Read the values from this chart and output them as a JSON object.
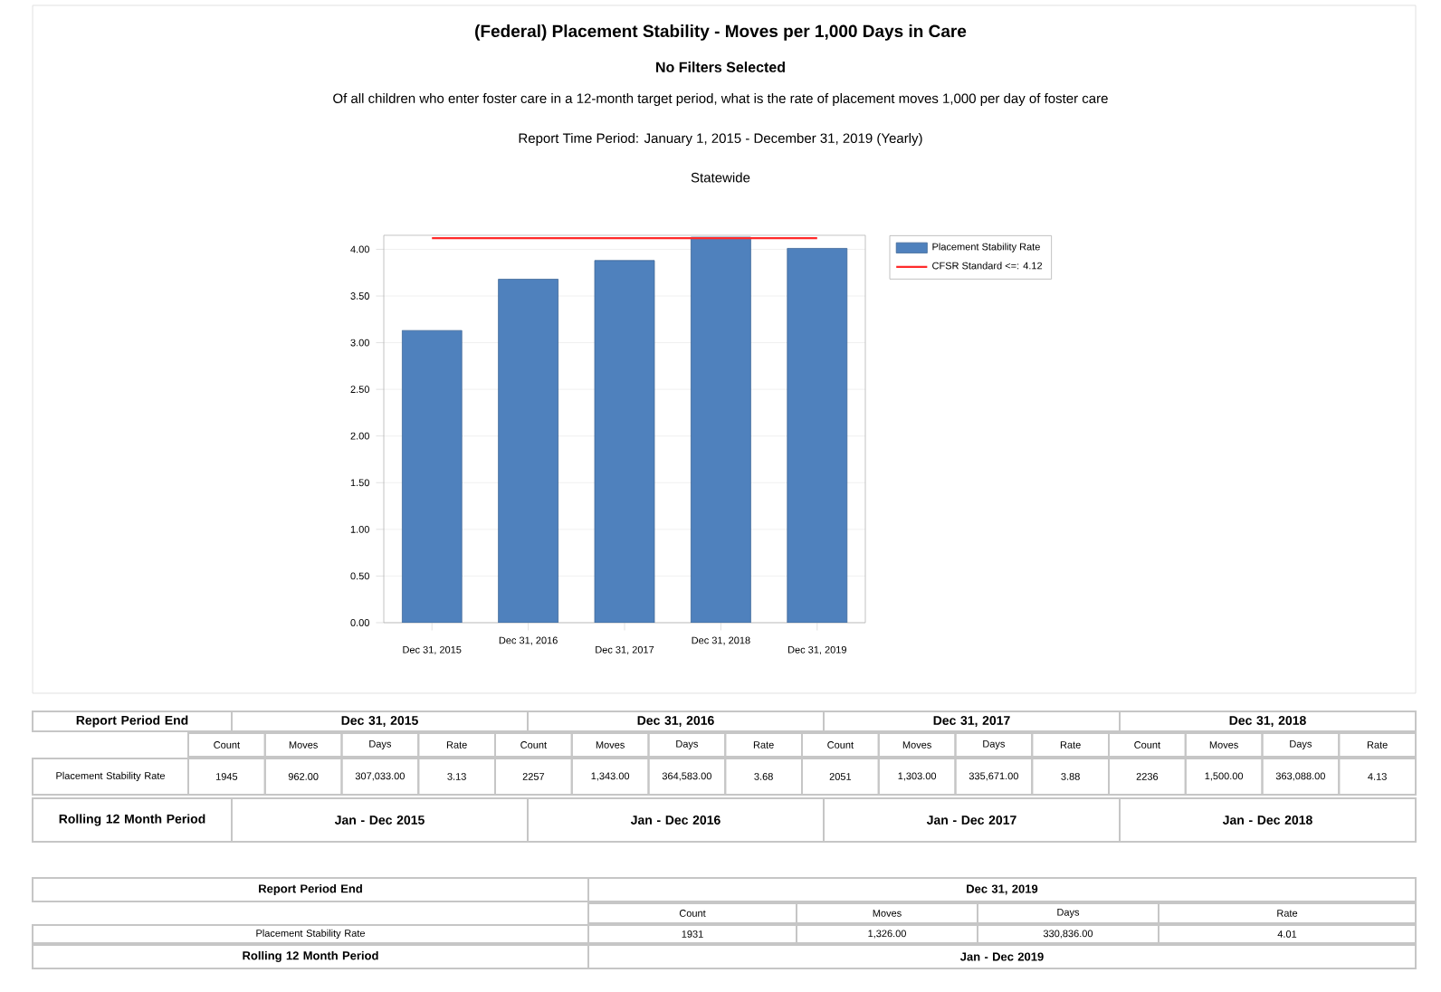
{
  "chart_data": {
    "type": "bar",
    "title": "(Federal) Placement Stability - Moves per 1,000 Days in Care",
    "subtitle": "No Filters Selected",
    "categories": [
      "Dec 31, 2015",
      "Dec 31, 2016",
      "Dec 31, 2017",
      "Dec 31, 2018",
      "Dec 31, 2019"
    ],
    "series": [
      {
        "name": "Placement Stability Rate",
        "color": "#4f81bd",
        "values": [
          3.13,
          3.68,
          3.88,
          4.13,
          4.01
        ]
      }
    ],
    "ylim": [
      0,
      4.15
    ],
    "yticks": [
      {
        "value": 0,
        "label": "0.00"
      },
      {
        "value": 0.5,
        "label": "0.50"
      },
      {
        "value": 1,
        "label": "1.00"
      },
      {
        "value": 1.5,
        "label": "1.50"
      },
      {
        "value": 2,
        "label": "2.00"
      },
      {
        "value": 2.5,
        "label": "2.50"
      },
      {
        "value": 3,
        "label": "3.00"
      },
      {
        "value": 3.5,
        "label": "3.50"
      },
      {
        "value": 4,
        "label": "4.00"
      }
    ],
    "ref_lines": [
      {
        "axis": "y",
        "value": 4.12,
        "label": "CFSR Standard <=: 4.12",
        "color": "#ff2a2a",
        "line_style": "solid"
      }
    ],
    "grid": "y",
    "legend": "right",
    "annotations": [
      "Of all children who enter foster care in a 12-month target period, what is the rate of placement moves 1,000 per day of foster care",
      "Report Time Period: January 1, 2015 - December 31, 2019 (Yearly)",
      "Statewide",
      "Report Period End",
      "Dec 31, 2015",
      "Dec 31, 2016",
      "Dec 31, 2017",
      "Dec 31, 2018",
      "Count",
      "Moves",
      "Days",
      "Rate",
      "Count",
      "Moves",
      "Days",
      "Rate",
      "Count",
      "Moves",
      "Days",
      "Rate",
      "Count",
      "Moves",
      "Days",
      "Rate",
      "Placement Stability Rate",
      "1945",
      "962.00",
      "307,033.00",
      "3.13",
      "2257",
      "1,343.00",
      "364,583.00",
      "3.68",
      "2051",
      "1,303.00",
      "335,671.00",
      "3.88",
      "2236",
      "1,500.00",
      "363,088.00",
      "4.13",
      "Rolling 12 Month Period",
      "Jan - Dec 2015",
      "Jan - Dec 2016",
      "Jan - Dec 2017",
      "Jan - Dec 2018",
      "Report Period End",
      "Dec 31, 2019",
      "Count",
      "Moves",
      "Days",
      "Rate",
      "Placement Stability Rate",
      "1931",
      "1,326.00",
      "330,836.00",
      "4.01",
      "Rolling 12 Month Period",
      "Jan - Dec 2019"
    ]
  }
}
